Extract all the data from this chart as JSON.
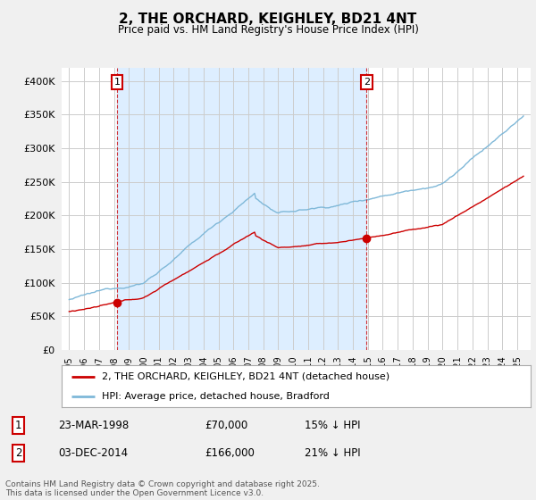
{
  "title": "2, THE ORCHARD, KEIGHLEY, BD21 4NT",
  "subtitle": "Price paid vs. HM Land Registry's House Price Index (HPI)",
  "sale1_year": 1998.21,
  "sale1_price": 70000,
  "sale1_display": "23-MAR-1998",
  "sale1_hpi_note": "15% ↓ HPI",
  "sale2_year": 2014.92,
  "sale2_price": 166000,
  "sale2_display": "03-DEC-2014",
  "sale2_hpi_note": "21% ↓ HPI",
  "hpi_line_color": "#7fb8d8",
  "sale_line_color": "#cc0000",
  "marker_color": "#cc0000",
  "shade_color": "#ddeeff",
  "vline_color": "#cc0000",
  "ylim_min": 0,
  "ylim_max": 420000,
  "xlim_min": 1994.5,
  "xlim_max": 2025.9,
  "legend_line1": "2, THE ORCHARD, KEIGHLEY, BD21 4NT (detached house)",
  "legend_line2": "HPI: Average price, detached house, Bradford",
  "footer": "Contains HM Land Registry data © Crown copyright and database right 2025.\nThis data is licensed under the Open Government Licence v3.0.",
  "background_color": "#f0f0f0",
  "plot_bg_color": "#ffffff",
  "grid_color": "#cccccc"
}
